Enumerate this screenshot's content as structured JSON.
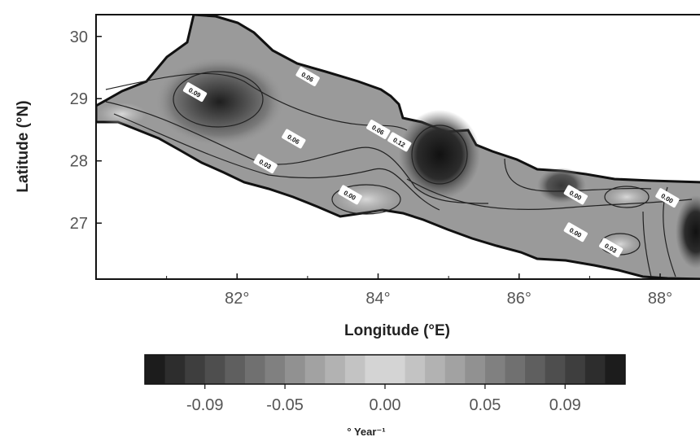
{
  "chart_data": {
    "type": "heatmap",
    "title": "",
    "xlabel": "Longitude (°E)",
    "ylabel": "Latitude (°N)",
    "xlim": [
      80.0,
      88.6
    ],
    "ylim": [
      26.1,
      30.35
    ],
    "x_ticks": [
      82,
      84,
      86,
      88
    ],
    "x_tick_labels": [
      "82°",
      "84°",
      "86°",
      "88°"
    ],
    "y_ticks": [
      30,
      29,
      28,
      27
    ],
    "y_tick_labels": [
      "30",
      "29",
      "28",
      "27"
    ],
    "contour_labels": [
      {
        "text": "0.09",
        "lon": 81.4,
        "lat": 29.1
      },
      {
        "text": "0.06",
        "lon": 83.0,
        "lat": 29.35
      },
      {
        "text": "0.06",
        "lon": 82.8,
        "lat": 28.35
      },
      {
        "text": "0.03",
        "lon": 82.4,
        "lat": 27.95
      },
      {
        "text": "0.00",
        "lon": 83.6,
        "lat": 27.45
      },
      {
        "text": "0.06",
        "lon": 84.0,
        "lat": 28.5
      },
      {
        "text": "0.12",
        "lon": 84.3,
        "lat": 28.3
      },
      {
        "text": "0.00",
        "lon": 86.8,
        "lat": 27.45
      },
      {
        "text": "0.00",
        "lon": 86.8,
        "lat": 26.85
      },
      {
        "text": "0.03",
        "lon": 87.3,
        "lat": 26.6
      },
      {
        "text": "0.00",
        "lon": 88.1,
        "lat": 27.4
      }
    ],
    "colorbar": {
      "min": -0.12,
      "max": 0.12,
      "tick_values": [
        -0.09,
        -0.05,
        0.0,
        0.05,
        0.09
      ],
      "tick_labels": [
        "-0.09",
        "-0.05",
        "0.00",
        "0.05",
        "0.09"
      ],
      "unit": "° Year⁻¹"
    }
  }
}
